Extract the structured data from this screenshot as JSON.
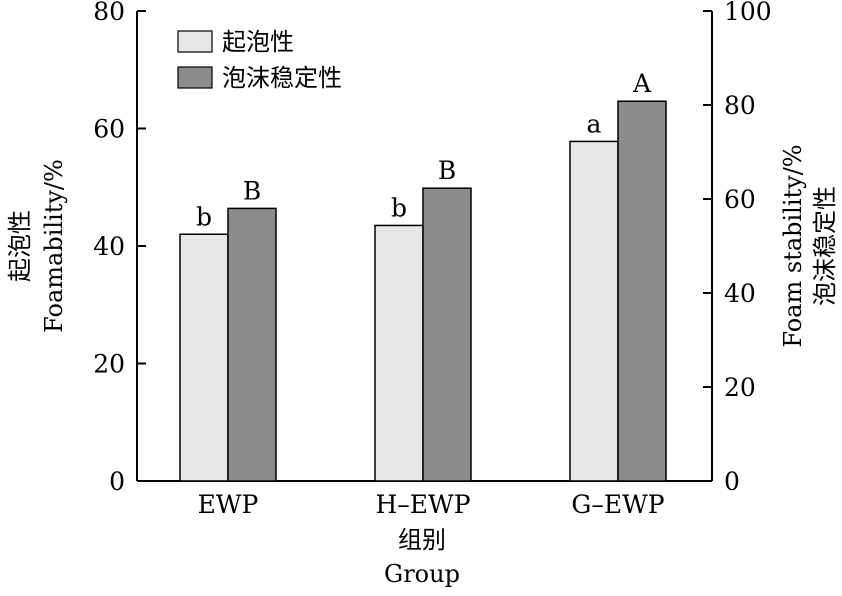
{
  "chart_data": {
    "type": "bar",
    "categories": [
      "EWP",
      "H–EWP",
      "G–EWP"
    ],
    "xlabel": [
      "组别",
      "Group"
    ],
    "ylabel_left": [
      "起泡性",
      "Foamability/%"
    ],
    "ylabel_right": [
      "Foam stability/%",
      "泡沫稳定性"
    ],
    "left_axis": {
      "ylim": [
        0,
        80
      ],
      "ticks": [
        0,
        20,
        40,
        60,
        80
      ]
    },
    "right_axis": {
      "ylim": [
        0,
        100
      ],
      "ticks": [
        0,
        20,
        40,
        60,
        80,
        100
      ]
    },
    "series": [
      {
        "name": "起泡性",
        "axis": "left",
        "values": [
          42.0,
          43.5,
          57.8
        ],
        "labels": [
          "b",
          "b",
          "a"
        ],
        "color": "#e6e7e9"
      },
      {
        "name": "泡沫稳定性",
        "axis": "right",
        "values": [
          58.0,
          62.3,
          80.8
        ],
        "labels": [
          "B",
          "B",
          "A"
        ],
        "color": "#8c8c8c"
      }
    ],
    "legend": "top-left",
    "grid": false
  }
}
